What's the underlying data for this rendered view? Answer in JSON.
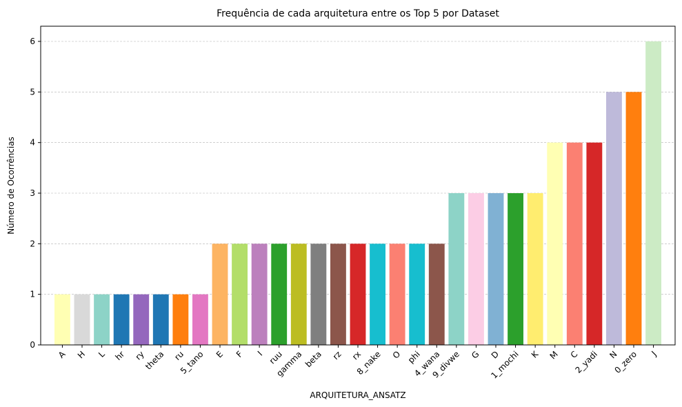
{
  "chart_data": {
    "type": "bar",
    "title": "Frequência de cada arquitetura entre os Top 5 por Dataset",
    "xlabel": "ARQUITETURA_ANSATZ",
    "ylabel": "Número de Ocorrências",
    "ylim": [
      0,
      6.3
    ],
    "yticks": [
      0,
      1,
      2,
      3,
      4,
      5,
      6
    ],
    "grid": "y-dashed",
    "categories": [
      "A",
      "H",
      "L",
      "hr",
      "ry",
      "theta",
      "ru",
      "5_tano",
      "E",
      "F",
      "I",
      "ruu",
      "gamma",
      "beta",
      "rz",
      "rx",
      "8_nake",
      "O",
      "phi",
      "4_wana",
      "9_divwe",
      "G",
      "D",
      "1_mochi",
      "K",
      "M",
      "C",
      "2_yadi",
      "N",
      "0_zero",
      "J"
    ],
    "values": [
      1,
      1,
      1,
      1,
      1,
      1,
      1,
      1,
      2,
      2,
      2,
      2,
      2,
      2,
      2,
      2,
      2,
      2,
      2,
      2,
      3,
      3,
      3,
      3,
      3,
      4,
      4,
      4,
      5,
      5,
      6
    ],
    "colors": [
      "#ffffb3",
      "#d9d9d9",
      "#8dd3c7",
      "#1f77b4",
      "#9467bd",
      "#1f77b4",
      "#ff7f0e",
      "#e377c2",
      "#fdb462",
      "#b3de69",
      "#bc80bd",
      "#2ca02c",
      "#bcbd22",
      "#7f7f7f",
      "#8c564b",
      "#d62728",
      "#17becf",
      "#fb8072",
      "#17becf",
      "#8c564b",
      "#8dd3c7",
      "#fccde5",
      "#80b1d3",
      "#2ca02c",
      "#ffed6f",
      "#ffffb3",
      "#fb8072",
      "#d62728",
      "#bebada",
      "#ff7f0e",
      "#ccebc5"
    ]
  }
}
